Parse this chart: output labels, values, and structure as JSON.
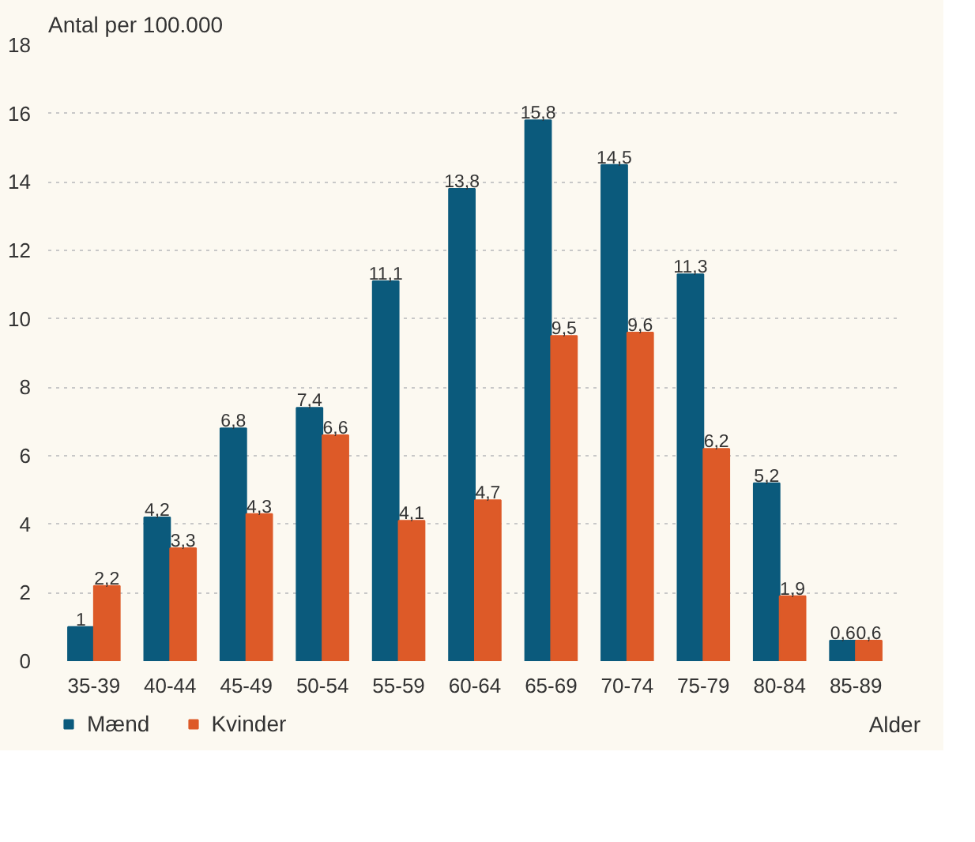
{
  "chart_data": {
    "type": "bar",
    "ylabel": "Antal per 100.000",
    "xlabel": "Alder",
    "categories": [
      "35-39",
      "40-44",
      "45-49",
      "50-54",
      "55-59",
      "60-64",
      "65-69",
      "70-74",
      "75-79",
      "80-84",
      "85-89"
    ],
    "series": [
      {
        "name": "Mænd",
        "color": "#0b5a7c",
        "values": [
          1,
          4.2,
          6.8,
          7.4,
          11.1,
          13.8,
          15.8,
          14.5,
          11.3,
          5.2,
          0.6
        ],
        "value_labels": [
          "1",
          "4,2",
          "6,8",
          "7,4",
          "11,1",
          "13,8",
          "15,8",
          "14,5",
          "11,3",
          "5,2",
          "0,6"
        ]
      },
      {
        "name": "Kvinder",
        "color": "#dd5a28",
        "values": [
          2.2,
          3.3,
          4.3,
          6.6,
          4.1,
          4.7,
          9.5,
          9.6,
          6.2,
          1.9,
          0.6
        ],
        "value_labels": [
          "2,2",
          "3,3",
          "4,3",
          "6,6",
          "4,1",
          "4,7",
          "9,5",
          "9,6",
          "6,2",
          "1,9",
          "0,6"
        ]
      }
    ],
    "ylim": [
      0,
      18
    ],
    "yticks": [
      0,
      2,
      4,
      6,
      8,
      10,
      12,
      14,
      16,
      18
    ],
    "grid": "y",
    "legend": "bottom left"
  }
}
